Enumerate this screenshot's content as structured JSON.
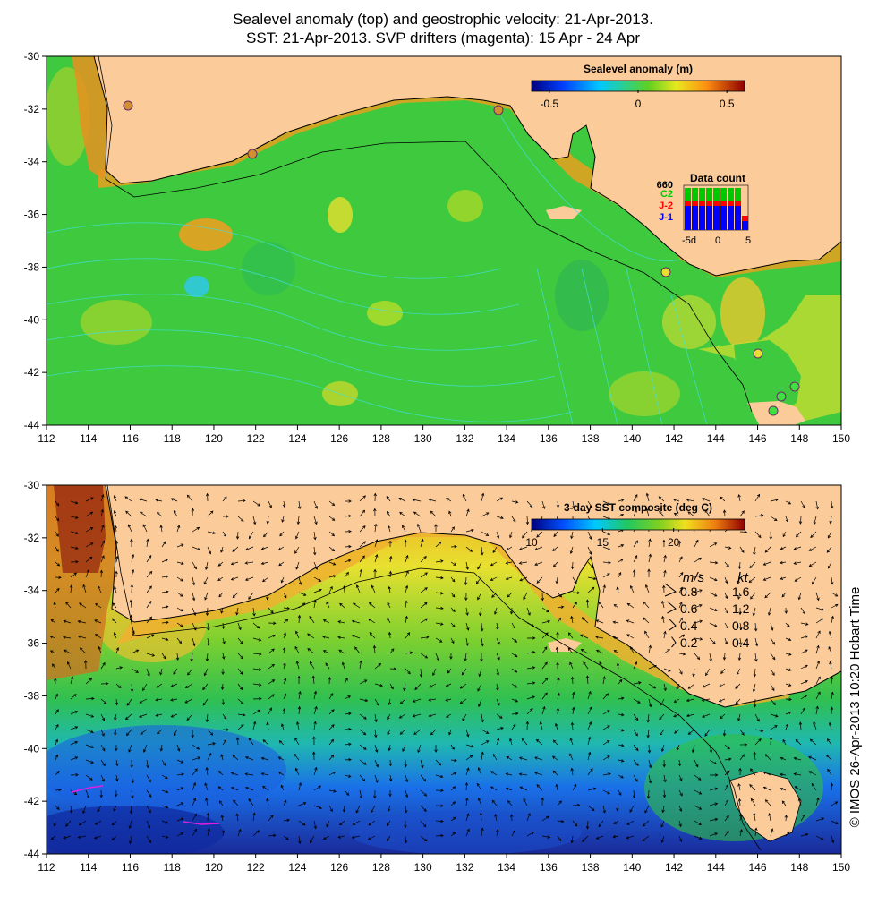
{
  "header": {
    "title_line1": "Sealevel anomaly (top) and geostrophic velocity: 21-Apr-2013.",
    "title_line2": "SST: 21-Apr-2013. SVP drifters (magenta): 15 Apr - 24 Apr"
  },
  "axes": {
    "lon_ticks": [
      "112",
      "114",
      "116",
      "118",
      "120",
      "122",
      "124",
      "126",
      "128",
      "130",
      "132",
      "134",
      "136",
      "138",
      "140",
      "142",
      "144",
      "146",
      "148",
      "150"
    ],
    "lat_ticks": [
      "-30",
      "-32",
      "-34",
      "-36",
      "-38",
      "-40",
      "-42",
      "-44"
    ]
  },
  "top_map": {
    "colorbar_title": "Sealevel anomaly (m)",
    "colorbar_ticks": [
      "-0.5",
      "0",
      "0.5"
    ],
    "colorbar_range": [
      -0.6,
      0.6
    ],
    "inset": {
      "title": "Data count",
      "max_label": "660",
      "series": [
        {
          "name": "C2",
          "color": "#00c800"
        },
        {
          "name": "J-2",
          "color": "#ff0000"
        },
        {
          "name": "J-1",
          "color": "#0000ff"
        }
      ],
      "x_ticks": [
        "-5d",
        "0",
        "5"
      ]
    }
  },
  "bottom_map": {
    "colorbar_title": "3-day SST composite (deg C)",
    "colorbar_ticks": [
      "10",
      "15",
      "20"
    ],
    "colorbar_range": [
      10,
      25
    ],
    "legend": {
      "header_ms": "m/s",
      "header_kt": "kt",
      "rows": [
        {
          "ms": "0.8",
          "kt": "1.6"
        },
        {
          "ms": "0.6",
          "kt": "1.2"
        },
        {
          "ms": "0.4",
          "kt": "0.8"
        },
        {
          "ms": "0.2",
          "kt": "0.4"
        }
      ]
    }
  },
  "footer": {
    "credit": "© IMOS 26-Apr-2013 10:20 Hobart Time"
  },
  "colors": {
    "land": "#fccb9a",
    "ocean_green": "#3fc93f",
    "contour_cyan": "#40e0e0"
  }
}
